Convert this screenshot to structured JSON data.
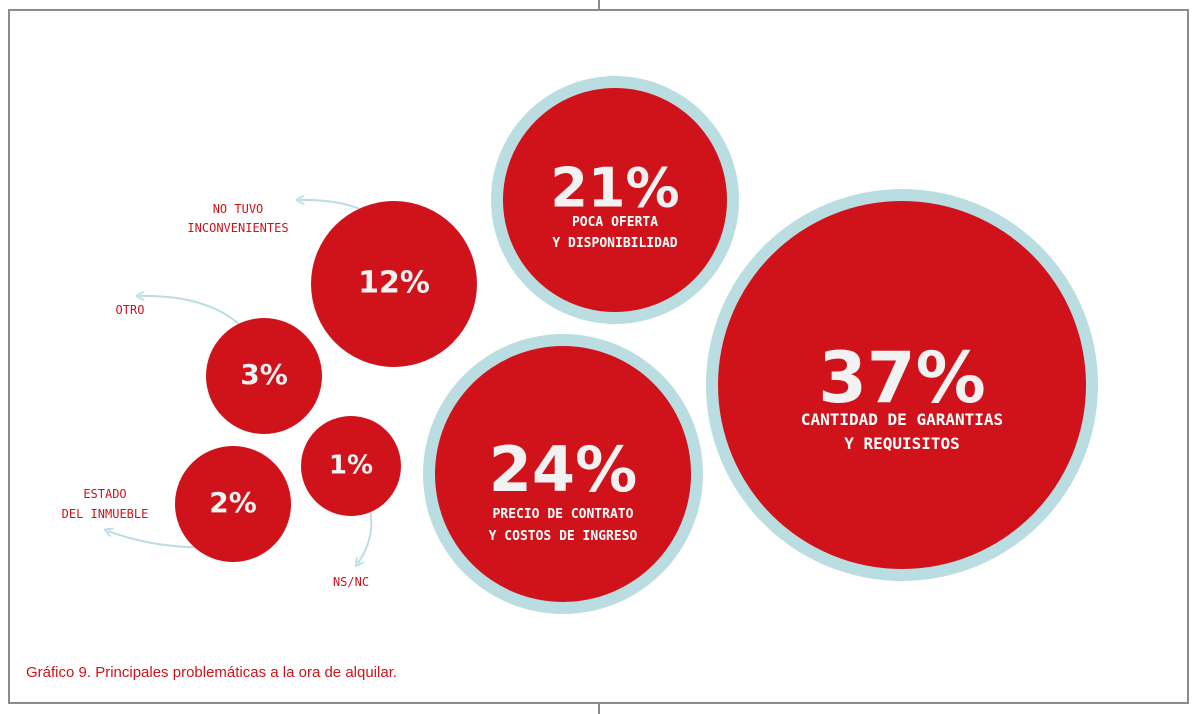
{
  "caption": "Gráfico 9. Principales problemáticas a la ora de alquilar.",
  "colors": {
    "bubble": "#d0121b",
    "ring": "#b9dde1",
    "label": "#d0121b",
    "arrow": "#b9dde1"
  },
  "chart_data": {
    "type": "bubble",
    "title": "",
    "items": [
      {
        "value": 37,
        "percent_label": "37%",
        "label_lines": [
          "CANTIDAD DE GARANTIAS",
          "Y REQUISITOS"
        ],
        "label_position": "inside",
        "highlighted": true
      },
      {
        "value": 24,
        "percent_label": "24%",
        "label_lines": [
          "PRECIO DE CONTRATO",
          "Y COSTOS DE INGRESO"
        ],
        "label_position": "inside",
        "highlighted": true
      },
      {
        "value": 21,
        "percent_label": "21%",
        "label_lines": [
          "POCA OFERTA",
          "Y DISPONIBILIDAD"
        ],
        "label_position": "inside",
        "highlighted": true
      },
      {
        "value": 12,
        "percent_label": "12%",
        "label_lines": [
          "NO TUVO",
          "INCONVENIENTES"
        ],
        "label_position": "outside",
        "highlighted": false
      },
      {
        "value": 3,
        "percent_label": "3%",
        "label_lines": [
          "OTRO"
        ],
        "label_position": "outside",
        "highlighted": false
      },
      {
        "value": 2,
        "percent_label": "2%",
        "label_lines": [
          "ESTADO",
          "DEL INMUEBLE"
        ],
        "label_position": "outside",
        "highlighted": false
      },
      {
        "value": 1,
        "percent_label": "1%",
        "label_lines": [
          "NS/NC"
        ],
        "label_position": "outside",
        "highlighted": false
      }
    ]
  }
}
